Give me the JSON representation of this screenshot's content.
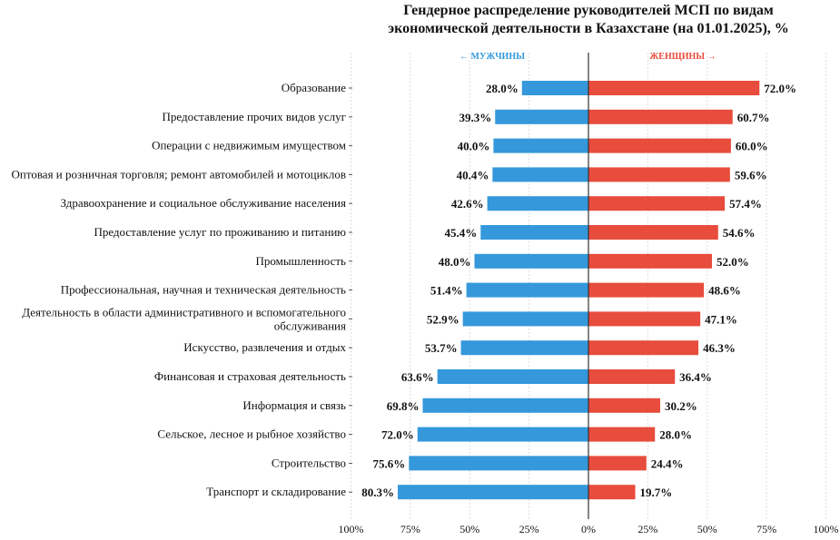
{
  "chart_data": {
    "type": "bar",
    "orientation": "horizontal-diverging",
    "title": [
      "Гендерное распределение руководителей МСП по видам",
      "экономической деятельности в Казахстане (на 01.01.2025), %"
    ],
    "direction_labels": {
      "men": "← МУЖЧИНЫ",
      "women": "ЖЕНЩИНЫ →"
    },
    "colors": {
      "men": "#3498db",
      "women": "#e74c3c"
    },
    "categories": [
      "Образование",
      "Предоставление прочих видов услуг",
      "Операции с недвижимым имуществом",
      "Оптовая и розничная торговля; ремонт автомобилей и мотоциклов",
      "Здравоохранение и социальное обслуживание населения",
      "Предоставление услуг по проживанию и питанию",
      "Промышленность",
      "Профессиональная, научная и техническая деятельность",
      "Деятельность в области административного и вспомогательного|обслуживания",
      "Искусство, развлечения и отдых",
      "Финансовая и страховая деятельность",
      "Информация и связь",
      "Сельское, лесное и рыбное хозяйство",
      "Строительство",
      "Транспорт и складирование"
    ],
    "series": [
      {
        "name": "Мужчины",
        "values": [
          28.0,
          39.3,
          40.0,
          40.4,
          42.6,
          45.4,
          48.0,
          51.4,
          52.9,
          53.7,
          63.6,
          69.8,
          72.0,
          75.6,
          80.3
        ]
      },
      {
        "name": "Женщины",
        "values": [
          72.0,
          60.7,
          60.0,
          59.6,
          57.4,
          54.6,
          52.0,
          48.6,
          47.1,
          46.3,
          36.4,
          30.2,
          28.0,
          24.4,
          19.7
        ]
      }
    ],
    "xlim": [
      -100,
      100
    ],
    "xticks": [
      -100,
      -75,
      -50,
      -25,
      0,
      25,
      50,
      75,
      100
    ],
    "xtick_labels": [
      "100%",
      "75%",
      "50%",
      "25%",
      "0%",
      "25%",
      "50%",
      "75%",
      "100%"
    ],
    "grid": true
  }
}
